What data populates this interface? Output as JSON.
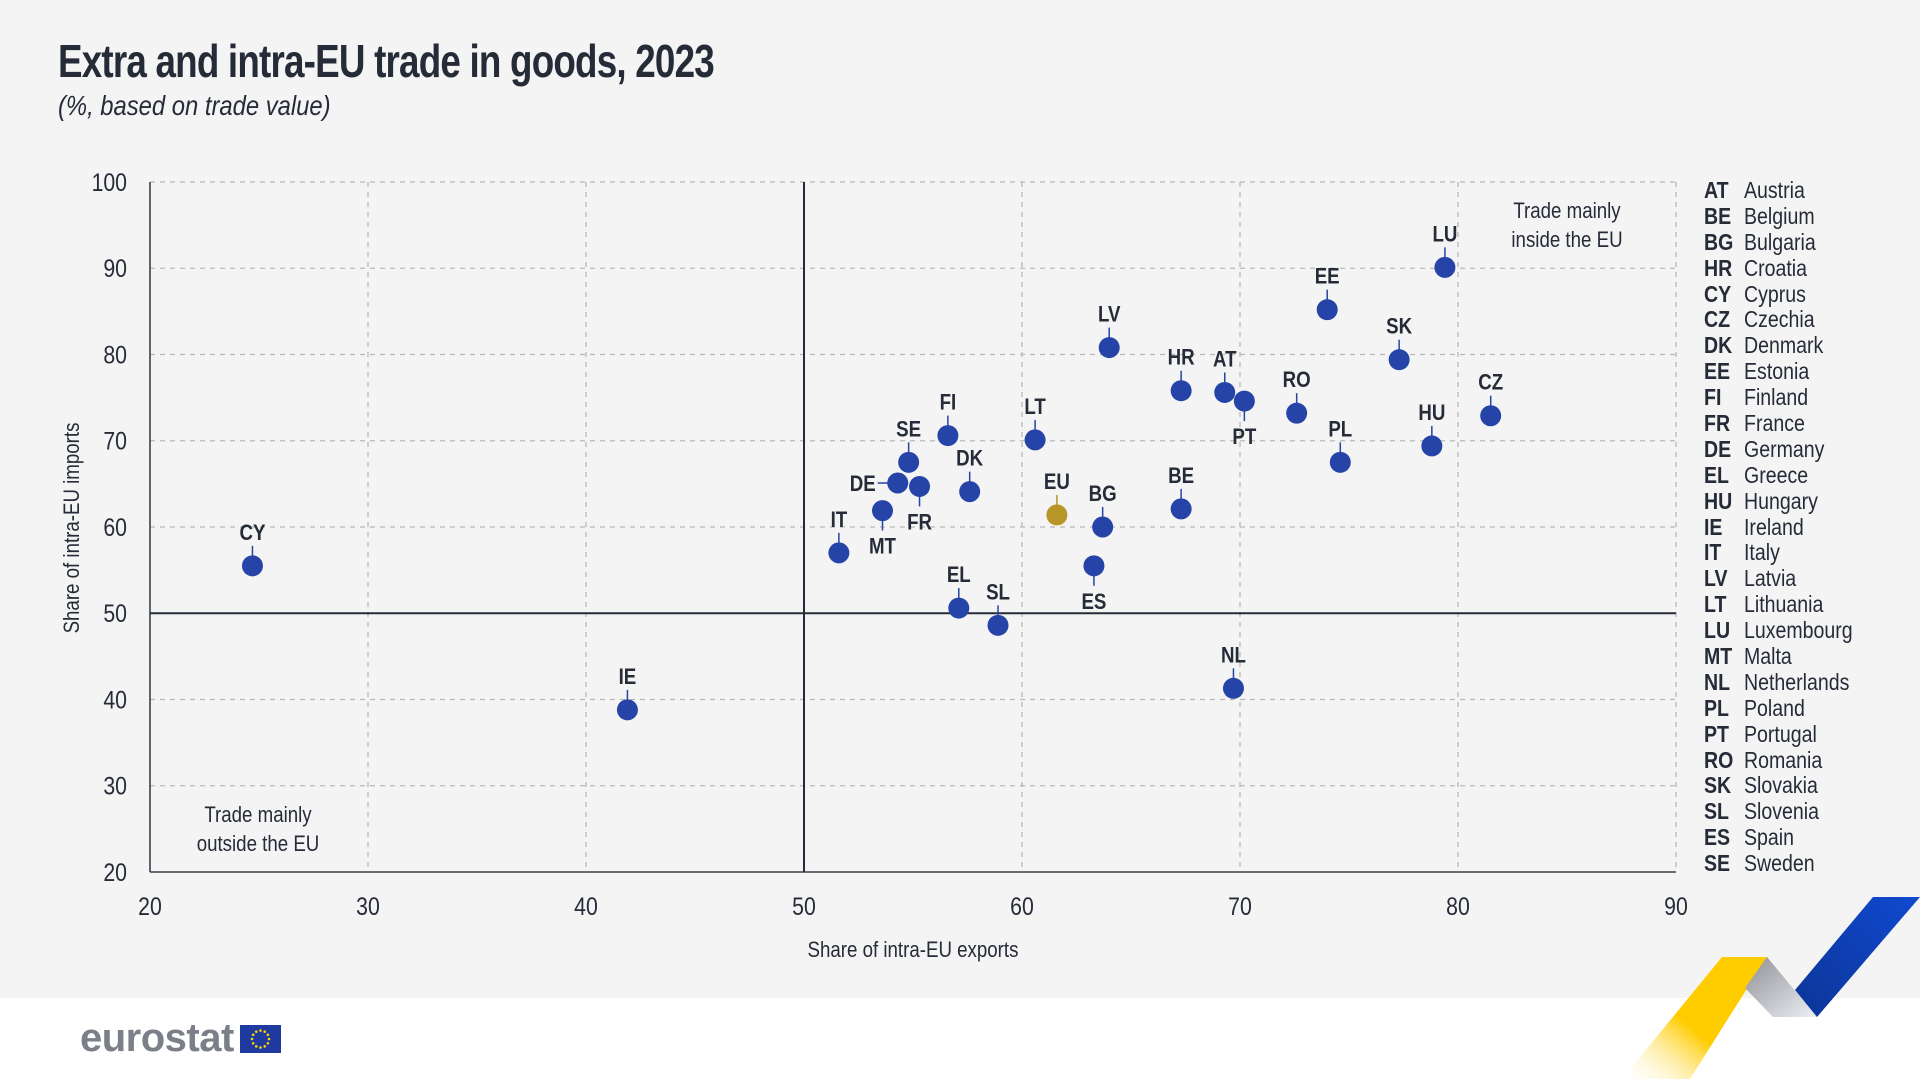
{
  "header": {
    "title": "Extra and intra-EU trade in goods, 2023",
    "subtitle": "(%, based on trade value)"
  },
  "footer": {
    "logo_text": "eurostat"
  },
  "colors": {
    "country_point": "#2644a7",
    "eu_point": "#b89527",
    "text": "#262b38",
    "grid": "#b8b8b8",
    "ribbon_yellow": "#ffcc00",
    "ribbon_blue": "#0e47cb"
  },
  "chart_data": {
    "type": "scatter",
    "title": "Extra and intra-EU trade in goods, 2023",
    "subtitle": "(%, based on trade value)",
    "xlabel": "Share of intra-EU exports",
    "ylabel": "Share of intra-EU imports",
    "xlim": [
      20,
      90
    ],
    "ylim": [
      20,
      100
    ],
    "xticks": [
      "20",
      "30",
      "40",
      "50",
      "60",
      "70",
      "80",
      "90"
    ],
    "yticks": [
      "20",
      "30",
      "40",
      "50",
      "60",
      "70",
      "80",
      "90",
      "100"
    ],
    "grid": true,
    "reference_lines": {
      "x": 50,
      "y": 50
    },
    "annotations": [
      {
        "text": [
          "Trade mainly",
          "inside the EU"
        ],
        "position": "top-right"
      },
      {
        "text": [
          "Trade mainly",
          "outside the EU"
        ],
        "position": "bottom-left"
      }
    ],
    "points": [
      {
        "code": "AT",
        "x": 69.3,
        "y": 75.6,
        "label_pos": "above"
      },
      {
        "code": "BE",
        "x": 67.3,
        "y": 62.1,
        "label_pos": "above"
      },
      {
        "code": "BG",
        "x": 63.7,
        "y": 60.0,
        "label_pos": "above"
      },
      {
        "code": "HR",
        "x": 67.3,
        "y": 75.8,
        "label_pos": "above"
      },
      {
        "code": "CY",
        "x": 24.7,
        "y": 55.5,
        "label_pos": "above"
      },
      {
        "code": "CZ",
        "x": 81.5,
        "y": 72.9,
        "label_pos": "above"
      },
      {
        "code": "DK",
        "x": 57.6,
        "y": 64.1,
        "label_pos": "above"
      },
      {
        "code": "EE",
        "x": 74.0,
        "y": 85.2,
        "label_pos": "above"
      },
      {
        "code": "FI",
        "x": 56.6,
        "y": 70.6,
        "label_pos": "above"
      },
      {
        "code": "FR",
        "x": 55.3,
        "y": 64.7,
        "label_pos": "below"
      },
      {
        "code": "DE",
        "x": 54.3,
        "y": 65.1,
        "label_pos": "left"
      },
      {
        "code": "EL",
        "x": 57.1,
        "y": 50.6,
        "label_pos": "above"
      },
      {
        "code": "HU",
        "x": 78.8,
        "y": 69.4,
        "label_pos": "above"
      },
      {
        "code": "IE",
        "x": 41.9,
        "y": 38.8,
        "label_pos": "above"
      },
      {
        "code": "IT",
        "x": 51.6,
        "y": 57.0,
        "label_pos": "above"
      },
      {
        "code": "LV",
        "x": 64.0,
        "y": 80.8,
        "label_pos": "above"
      },
      {
        "code": "LT",
        "x": 60.6,
        "y": 70.1,
        "label_pos": "above"
      },
      {
        "code": "LU",
        "x": 79.4,
        "y": 90.1,
        "label_pos": "above"
      },
      {
        "code": "MT",
        "x": 53.6,
        "y": 61.9,
        "label_pos": "below"
      },
      {
        "code": "NL",
        "x": 69.7,
        "y": 41.3,
        "label_pos": "above"
      },
      {
        "code": "PL",
        "x": 74.6,
        "y": 67.5,
        "label_pos": "above"
      },
      {
        "code": "PT",
        "x": 70.2,
        "y": 74.6,
        "label_pos": "below"
      },
      {
        "code": "RO",
        "x": 72.6,
        "y": 73.2,
        "label_pos": "above"
      },
      {
        "code": "SK",
        "x": 77.3,
        "y": 79.4,
        "label_pos": "above"
      },
      {
        "code": "SL",
        "x": 58.9,
        "y": 48.6,
        "label_pos": "above"
      },
      {
        "code": "ES",
        "x": 63.3,
        "y": 55.5,
        "label_pos": "below"
      },
      {
        "code": "SE",
        "x": 54.8,
        "y": 67.5,
        "label_pos": "above"
      },
      {
        "code": "EU",
        "x": 61.6,
        "y": 61.4,
        "label_pos": "above",
        "highlight": true
      }
    ],
    "legend": [
      {
        "code": "AT",
        "name": "Austria"
      },
      {
        "code": "BE",
        "name": "Belgium"
      },
      {
        "code": "BG",
        "name": "Bulgaria"
      },
      {
        "code": "HR",
        "name": "Croatia"
      },
      {
        "code": "CY",
        "name": "Cyprus"
      },
      {
        "code": "CZ",
        "name": "Czechia"
      },
      {
        "code": "DK",
        "name": "Denmark"
      },
      {
        "code": "EE",
        "name": "Estonia"
      },
      {
        "code": "FI",
        "name": "Finland"
      },
      {
        "code": "FR",
        "name": "France"
      },
      {
        "code": "DE",
        "name": "Germany"
      },
      {
        "code": "EL",
        "name": "Greece"
      },
      {
        "code": "HU",
        "name": "Hungary"
      },
      {
        "code": "IE",
        "name": "Ireland"
      },
      {
        "code": "IT",
        "name": "Italy"
      },
      {
        "code": "LV",
        "name": "Latvia"
      },
      {
        "code": "LT",
        "name": "Lithuania"
      },
      {
        "code": "LU",
        "name": "Luxembourg"
      },
      {
        "code": "MT",
        "name": "Malta"
      },
      {
        "code": "NL",
        "name": "Netherlands"
      },
      {
        "code": "PL",
        "name": "Poland"
      },
      {
        "code": "PT",
        "name": "Portugal"
      },
      {
        "code": "RO",
        "name": "Romania"
      },
      {
        "code": "SK",
        "name": "Slovakia"
      },
      {
        "code": "SL",
        "name": "Slovenia"
      },
      {
        "code": "ES",
        "name": "Spain"
      },
      {
        "code": "SE",
        "name": "Sweden"
      }
    ],
    "legend_position": "right"
  }
}
